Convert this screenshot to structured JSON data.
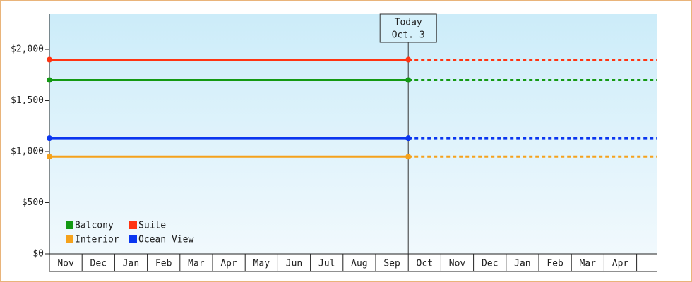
{
  "chart_data": {
    "type": "line",
    "categories": [
      "Nov",
      "Dec",
      "Jan",
      "Feb",
      "Mar",
      "Apr",
      "May",
      "Jun",
      "Jul",
      "Aug",
      "Sep",
      "Oct",
      "Nov",
      "Dec",
      "Jan",
      "Feb",
      "Mar",
      "Apr"
    ],
    "series": [
      {
        "name": "Balcony",
        "color": "#139913",
        "values": [
          1700,
          1700,
          1700,
          1700,
          1700,
          1700,
          1700,
          1700,
          1700,
          1700,
          1700,
          1700,
          null,
          null,
          null,
          null,
          null,
          null
        ]
      },
      {
        "name": "Suite",
        "color": "#ff3311",
        "values": [
          1900,
          1900,
          1900,
          1900,
          1900,
          1900,
          1900,
          1900,
          1900,
          1900,
          1900,
          1900,
          null,
          null,
          null,
          null,
          null,
          null
        ]
      },
      {
        "name": "Interior",
        "color": "#f5a21c",
        "values": [
          950,
          950,
          950,
          950,
          950,
          950,
          950,
          950,
          950,
          950,
          950,
          950,
          null,
          null,
          null,
          null,
          null,
          null
        ]
      },
      {
        "name": "Ocean View",
        "color": "#0a36f0",
        "values": [
          1130,
          1130,
          1130,
          1130,
          1130,
          1130,
          1130,
          1130,
          1130,
          1130,
          1130,
          1130,
          null,
          null,
          null,
          null,
          null,
          null
        ]
      }
    ],
    "ylim": [
      0,
      2345
    ],
    "yticks": [
      {
        "value": 0,
        "label": "$0"
      },
      {
        "value": 500,
        "label": "$500"
      },
      {
        "value": 1000,
        "label": "$1,000"
      },
      {
        "value": 1500,
        "label": "$1,500"
      },
      {
        "value": 2000,
        "label": "$2,000"
      }
    ],
    "annotation": {
      "lines": [
        "Today",
        "Oct. 3"
      ],
      "category": "Oct"
    },
    "legend": "lower-left"
  }
}
